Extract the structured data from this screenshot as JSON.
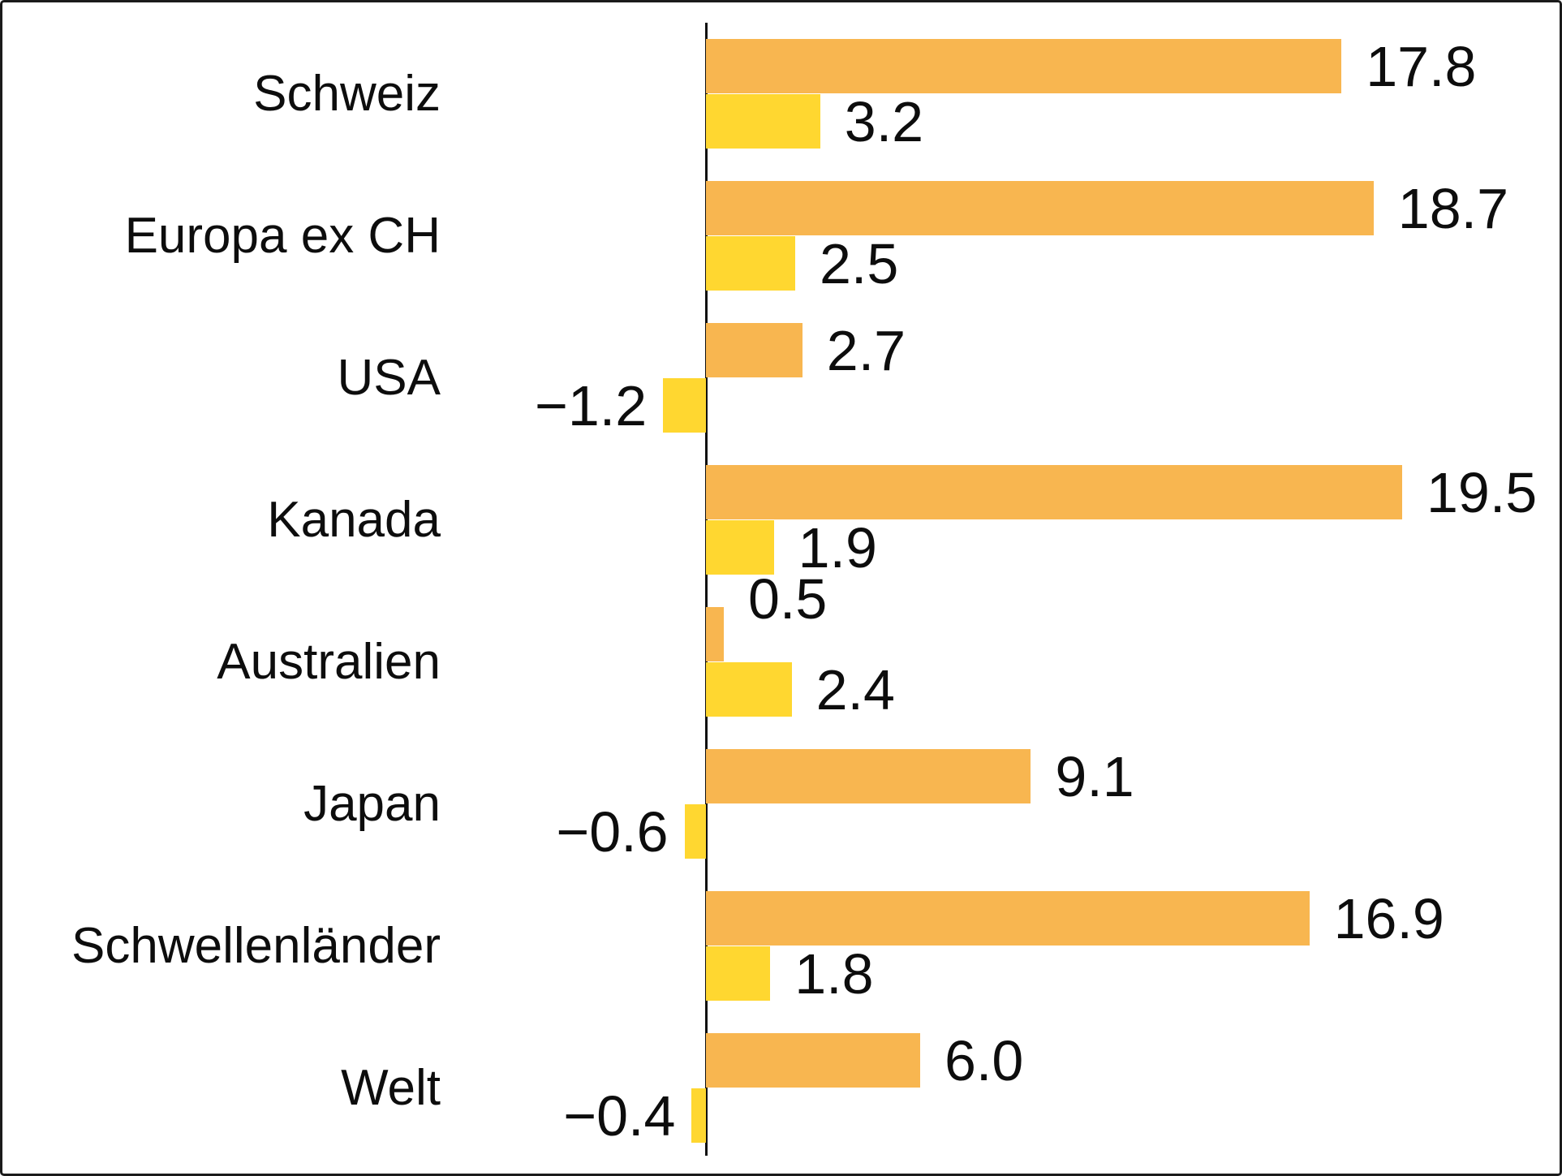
{
  "chart_data": {
    "type": "bar",
    "orientation": "horizontal",
    "title": "",
    "xlabel": "",
    "ylabel": "",
    "legend": "none",
    "grid": false,
    "value_axis_baseline": 0,
    "approx_xlim": [
      -2,
      21
    ],
    "categories": [
      "Schweiz",
      "Europa ex CH",
      "USA",
      "Kanada",
      "Australien",
      "Japan",
      "Schwellenländer",
      "Welt"
    ],
    "series": [
      {
        "name": "orange-series",
        "color": "#F8B650",
        "values": [
          17.8,
          18.7,
          2.7,
          19.5,
          0.5,
          9.1,
          16.9,
          6.0
        ],
        "labels": [
          "17.8",
          "18.7",
          "2.7",
          "19.5",
          "0.5",
          "9.1",
          "16.9",
          "6.0"
        ]
      },
      {
        "name": "yellow-series",
        "color": "#FFD730",
        "values": [
          3.2,
          2.5,
          -1.2,
          1.9,
          2.4,
          -0.6,
          1.8,
          -0.4
        ],
        "labels": [
          "3.2",
          "2.5",
          "−1.2",
          "1.9",
          "2.4",
          "−0.6",
          "1.8",
          "−0.4"
        ]
      }
    ]
  },
  "colors": {
    "orange": "#F8B650",
    "yellow": "#FFD730",
    "text": "#0d0d0d",
    "axis": "#111111",
    "frame_border": "#1b1b1b",
    "background": "#ffffff"
  }
}
